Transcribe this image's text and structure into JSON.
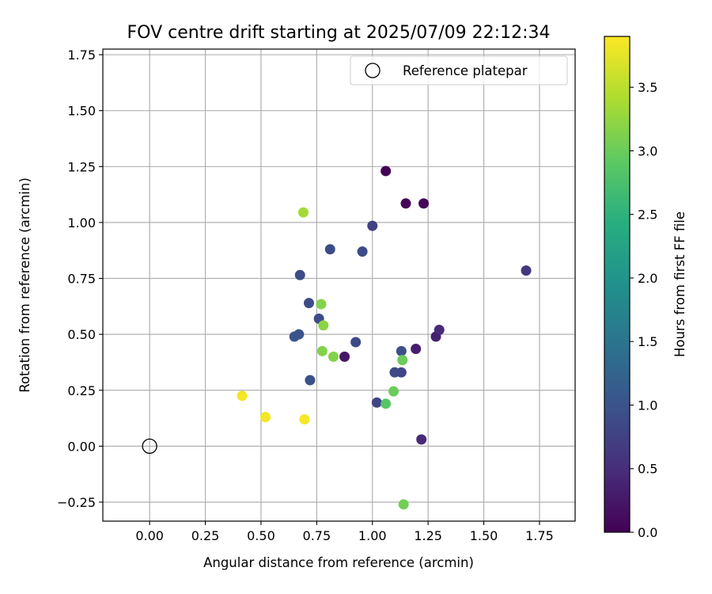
{
  "chart_data": {
    "type": "scatter",
    "title": "FOV centre drift starting at 2025/07/09 22:12:34",
    "xlabel": "Angular distance from reference (arcmin)",
    "ylabel": "Rotation from reference (arcmin)",
    "xlim": [
      -0.21,
      1.91
    ],
    "ylim": [
      -0.335,
      1.775
    ],
    "xticks": [
      0.0,
      0.25,
      0.5,
      0.75,
      1.0,
      1.25,
      1.5,
      1.75
    ],
    "xtick_labels": [
      "0.00",
      "0.25",
      "0.50",
      "0.75",
      "1.00",
      "1.25",
      "1.50",
      "1.75"
    ],
    "yticks": [
      -0.25,
      0.0,
      0.25,
      0.5,
      0.75,
      1.0,
      1.25,
      1.5,
      1.75
    ],
    "ytick_labels": [
      "−0.25",
      "0.00",
      "0.25",
      "0.50",
      "0.75",
      "1.00",
      "1.25",
      "1.50",
      "1.75"
    ],
    "grid": true,
    "legend": {
      "placement": "top-right",
      "entries": [
        {
          "label": "Reference platepar",
          "marker": "open-circle"
        }
      ]
    },
    "reference_point": {
      "x": 0.0,
      "y": 0.0
    },
    "colorbar": {
      "label": "Hours from first FF file",
      "colormap": "viridis",
      "range": [
        0.0,
        3.9
      ],
      "ticks": [
        0.0,
        0.5,
        1.0,
        1.5,
        2.0,
        2.5,
        3.0,
        3.5
      ],
      "tick_labels": [
        "0.0",
        "0.5",
        "1.0",
        "1.5",
        "2.0",
        "2.5",
        "3.0",
        "3.5"
      ]
    },
    "points": [
      {
        "x": 1.06,
        "y": 1.23,
        "c": 0.02
      },
      {
        "x": 1.15,
        "y": 1.085,
        "c": 0.05
      },
      {
        "x": 1.23,
        "y": 1.085,
        "c": 0.05
      },
      {
        "x": 0.875,
        "y": 0.4,
        "c": 0.25
      },
      {
        "x": 1.195,
        "y": 0.435,
        "c": 0.3
      },
      {
        "x": 1.285,
        "y": 0.49,
        "c": 0.35
      },
      {
        "x": 1.3,
        "y": 0.52,
        "c": 0.45
      },
      {
        "x": 1.22,
        "y": 0.03,
        "c": 0.45
      },
      {
        "x": 1.69,
        "y": 0.785,
        "c": 0.6
      },
      {
        "x": 1.0,
        "y": 0.985,
        "c": 0.75
      },
      {
        "x": 1.02,
        "y": 0.195,
        "c": 0.8
      },
      {
        "x": 1.13,
        "y": 0.33,
        "c": 0.8
      },
      {
        "x": 1.1,
        "y": 0.33,
        "c": 0.85
      },
      {
        "x": 0.81,
        "y": 0.88,
        "c": 0.9
      },
      {
        "x": 0.955,
        "y": 0.87,
        "c": 0.9
      },
      {
        "x": 0.715,
        "y": 0.64,
        "c": 0.9
      },
      {
        "x": 0.675,
        "y": 0.765,
        "c": 0.9
      },
      {
        "x": 0.76,
        "y": 0.57,
        "c": 0.9
      },
      {
        "x": 0.925,
        "y": 0.465,
        "c": 0.85
      },
      {
        "x": 0.72,
        "y": 0.295,
        "c": 0.95
      },
      {
        "x": 1.13,
        "y": 0.425,
        "c": 0.95
      },
      {
        "x": 0.65,
        "y": 0.49,
        "c": 1.0
      },
      {
        "x": 0.67,
        "y": 0.5,
        "c": 1.0
      },
      {
        "x": 1.06,
        "y": 0.19,
        "c": 2.85
      },
      {
        "x": 1.095,
        "y": 0.245,
        "c": 3.0
      },
      {
        "x": 1.135,
        "y": 0.385,
        "c": 3.0
      },
      {
        "x": 1.14,
        "y": -0.26,
        "c": 3.05
      },
      {
        "x": 0.77,
        "y": 0.635,
        "c": 3.15
      },
      {
        "x": 0.775,
        "y": 0.425,
        "c": 3.15
      },
      {
        "x": 0.825,
        "y": 0.4,
        "c": 3.15
      },
      {
        "x": 0.78,
        "y": 0.54,
        "c": 3.2
      },
      {
        "x": 0.69,
        "y": 1.045,
        "c": 3.35
      },
      {
        "x": 0.415,
        "y": 0.225,
        "c": 3.85
      },
      {
        "x": 0.52,
        "y": 0.13,
        "c": 3.85
      },
      {
        "x": 0.695,
        "y": 0.12,
        "c": 3.85
      }
    ]
  }
}
